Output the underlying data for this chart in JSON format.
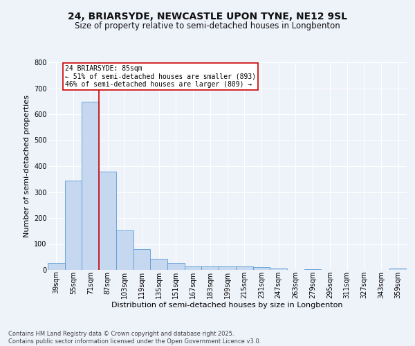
{
  "title1": "24, BRIARSYDE, NEWCASTLE UPON TYNE, NE12 9SL",
  "title2": "Size of property relative to semi-detached houses in Longbenton",
  "xlabel": "Distribution of semi-detached houses by size in Longbenton",
  "ylabel": "Number of semi-detached properties",
  "categories": [
    "39sqm",
    "55sqm",
    "71sqm",
    "87sqm",
    "103sqm",
    "119sqm",
    "135sqm",
    "151sqm",
    "167sqm",
    "183sqm",
    "199sqm",
    "215sqm",
    "231sqm",
    "247sqm",
    "263sqm",
    "279sqm",
    "295sqm",
    "311sqm",
    "327sqm",
    "343sqm",
    "359sqm"
  ],
  "values": [
    28,
    345,
    648,
    380,
    152,
    80,
    43,
    26,
    14,
    13,
    14,
    14,
    12,
    5,
    0,
    4,
    0,
    0,
    0,
    0,
    5
  ],
  "bar_color": "#c5d8f0",
  "bar_edge_color": "#5b9bd5",
  "vline_index": 3,
  "vline_color": "#cc0000",
  "annotation_text": "24 BRIARSYDE: 85sqm\n← 51% of semi-detached houses are smaller (893)\n46% of semi-detached houses are larger (809) →",
  "annotation_box_color": "#ffffff",
  "annotation_box_edge": "#cc0000",
  "background_color": "#eef2f9",
  "grid_color": "#ffffff",
  "ylim": [
    0,
    800
  ],
  "yticks": [
    0,
    100,
    200,
    300,
    400,
    500,
    600,
    700,
    800
  ],
  "footer": "Contains HM Land Registry data © Crown copyright and database right 2025.\nContains public sector information licensed under the Open Government Licence v3.0.",
  "title_fontsize": 10,
  "subtitle_fontsize": 8.5,
  "axis_label_fontsize": 8,
  "tick_fontsize": 7,
  "annotation_fontsize": 7,
  "footer_fontsize": 6
}
